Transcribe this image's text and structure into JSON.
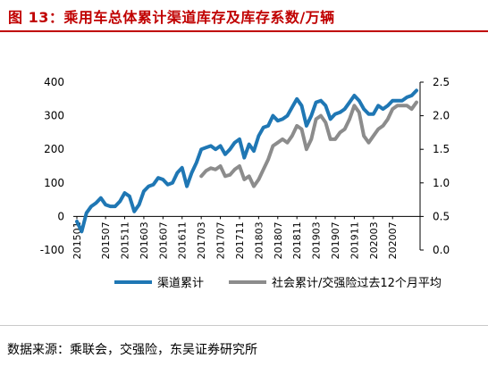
{
  "figure": {
    "title": "图 13：乘用车总体累计渠道库存及库存系数/万辆",
    "source": "数据来源：乘联会，交强险，东吴证券研究所"
  },
  "chart_data": {
    "type": "line",
    "title": "",
    "x": [
      "201501",
      "201502",
      "201503",
      "201504",
      "201505",
      "201506",
      "201507",
      "201508",
      "201509",
      "201510",
      "201511",
      "201512",
      "201601",
      "201602",
      "201603",
      "201604",
      "201605",
      "201606",
      "201607",
      "201608",
      "201609",
      "201610",
      "201611",
      "201612",
      "201701",
      "201702",
      "201703",
      "201704",
      "201705",
      "201706",
      "201707",
      "201708",
      "201709",
      "201710",
      "201711",
      "201712",
      "201801",
      "201802",
      "201803",
      "201804",
      "201805",
      "201806",
      "201807",
      "201808",
      "201809",
      "201810",
      "201811",
      "201812",
      "201901",
      "201902",
      "201903",
      "201904",
      "201905",
      "201906",
      "201907",
      "201908",
      "201909",
      "201910",
      "201911",
      "201912",
      "202001",
      "202002",
      "202003",
      "202004",
      "202005",
      "202006",
      "202007",
      "202008",
      "202009",
      "202010",
      "202011",
      "202012"
    ],
    "xticks": [
      "201501",
      "201507",
      "201511",
      "201603",
      "201607",
      "201611",
      "201703",
      "201707",
      "201711",
      "201803",
      "201807",
      "201811",
      "201903",
      "201907",
      "201911",
      "202003",
      "202007"
    ],
    "left_axis": {
      "ylim": [
        -100,
        400
      ],
      "ticks": [
        "-100",
        "0",
        "100",
        "200",
        "300",
        "400"
      ]
    },
    "right_axis": {
      "ylim": [
        0,
        2.5
      ],
      "ticks": [
        "0.0",
        "0.5",
        "1.0",
        "1.5",
        "2.0",
        "2.5"
      ]
    },
    "series": [
      {
        "name": "渠道累计",
        "axis": "left",
        "color": "#1f77b4",
        "values": [
          -15,
          -45,
          10,
          30,
          40,
          55,
          35,
          30,
          30,
          45,
          70,
          60,
          15,
          35,
          75,
          90,
          95,
          115,
          110,
          95,
          100,
          130,
          145,
          90,
          130,
          160,
          200,
          205,
          210,
          200,
          210,
          185,
          200,
          220,
          230,
          175,
          215,
          195,
          240,
          265,
          270,
          300,
          285,
          290,
          300,
          325,
          350,
          330,
          270,
          300,
          340,
          345,
          330,
          290,
          305,
          310,
          320,
          340,
          360,
          345,
          320,
          305,
          305,
          330,
          320,
          330,
          345,
          345,
          345,
          355,
          360,
          375
        ]
      },
      {
        "name": "社会累计/交强险过去12个月平均",
        "axis": "right",
        "color": "#8c8c8c",
        "values": [
          null,
          null,
          null,
          null,
          null,
          null,
          null,
          null,
          null,
          null,
          null,
          null,
          null,
          null,
          null,
          null,
          null,
          null,
          null,
          null,
          null,
          null,
          null,
          null,
          null,
          null,
          1.1,
          1.18,
          1.22,
          1.2,
          1.25,
          1.1,
          1.12,
          1.2,
          1.25,
          1.05,
          1.1,
          0.95,
          1.05,
          1.2,
          1.35,
          1.55,
          1.6,
          1.65,
          1.6,
          1.7,
          1.85,
          1.8,
          1.5,
          1.65,
          1.95,
          2.0,
          1.9,
          1.65,
          1.65,
          1.75,
          1.8,
          1.95,
          2.15,
          2.05,
          1.7,
          1.6,
          1.7,
          1.8,
          1.85,
          1.95,
          2.1,
          2.15,
          2.15,
          2.15,
          2.1,
          2.2
        ]
      }
    ],
    "legend_position": "bottom",
    "grid": false
  }
}
